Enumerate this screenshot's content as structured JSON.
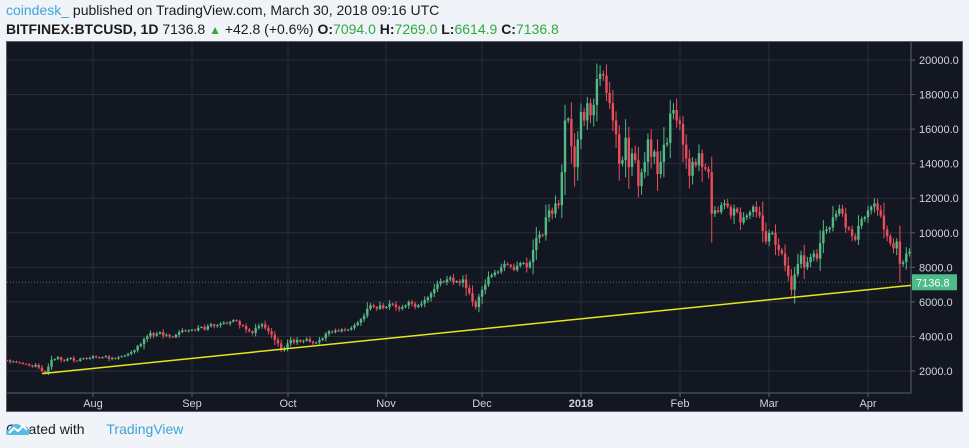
{
  "header": {
    "author": "coindesk_",
    "published_text": " published on TradingView.com, March 30, 2018 09:16 UTC",
    "symbol": "BITFINEX:BTCUSD, 1D",
    "last_price": "7136.8",
    "change_arrow": "▲",
    "change": "+42.8 (+0.6%)",
    "open_label": "O:",
    "open": "7094.0",
    "high_label": "H:",
    "high": "7269.0",
    "low_label": "L:",
    "low": "6614.9",
    "close_label": "C:",
    "close": "7136.8"
  },
  "footer": {
    "created_with": "Created with",
    "brand": "TradingView"
  },
  "colors": {
    "background": "#131722",
    "grid": "#2a2e39",
    "up": "#53b987",
    "down": "#eb4d5c",
    "trendline": "#e8e619",
    "price_tag": "#4dbb87",
    "axis_text": "#d1d4dc"
  },
  "chart_data": {
    "type": "candlestick",
    "title": "BITFINEX:BTCUSD, 1D",
    "xlabel": "",
    "ylabel": "",
    "ylim": [
      1000,
      21000
    ],
    "grid": true,
    "y_ticks": [
      "20000.0",
      "18000.0",
      "16000.0",
      "14000.0",
      "12000.0",
      "10000.0",
      "8000.0",
      "6000.0",
      "4000.0",
      "2000.0"
    ],
    "x_ticks": [
      "Aug",
      "Sep",
      "Oct",
      "Nov",
      "Dec",
      "2018",
      "Feb",
      "Mar",
      "Apr"
    ],
    "x_tick_bold": "2018",
    "current_price_label": "7136.8",
    "start_date": "2017-07-01",
    "end_date": "2018-03-30",
    "trendline": {
      "from": {
        "date": "2017-07-16",
        "price": 1850
      },
      "to": {
        "date": "2018-04-14",
        "price": 6950
      },
      "extends_right": true
    },
    "daily_close_approx": [
      2450,
      2500,
      2560,
      2600,
      2620,
      2520,
      2550,
      2500,
      2470,
      2420,
      2380,
      2330,
      2250,
      2350,
      2200,
      2000,
      1900,
      2250,
      2650,
      2700,
      2800,
      2650,
      2600,
      2700,
      2750,
      2600,
      2580,
      2700,
      2750,
      2700,
      2750,
      2850,
      2800,
      2750,
      2800,
      2850,
      2700,
      2750,
      2720,
      2800,
      2850,
      2900,
      3000,
      3100,
      3200,
      3450,
      3550,
      3850,
      4000,
      4200,
      4050,
      4150,
      4250,
      4050,
      4100,
      4000,
      3950,
      4100,
      4250,
      4350,
      4300,
      4350,
      4400,
      4350,
      4500,
      4550,
      4400,
      4600,
      4700,
      4600,
      4650,
      4750,
      4800,
      4750,
      4850,
      4950,
      4900,
      4650,
      4600,
      4400,
      4300,
      4200,
      4500,
      4600,
      4700,
      4500,
      4300,
      4100,
      3800,
      3600,
      3200,
      3300,
      3600,
      3800,
      3650,
      3800,
      3700,
      3750,
      3850,
      3700,
      3600,
      3650,
      3800,
      3900,
      4150,
      4300,
      4250,
      4350,
      4300,
      4400,
      4350,
      4400,
      4500,
      4650,
      4800,
      5000,
      5200,
      5600,
      5800,
      5700,
      5600,
      5800,
      5650,
      5700,
      5900,
      5850,
      5700,
      5600,
      5700,
      5800,
      6000,
      5900,
      5700,
      5800,
      5900,
      6100,
      6250,
      6500,
      6750,
      7050,
      7200,
      7150,
      7300,
      7400,
      7150,
      7200,
      7100,
      7300,
      6800,
      6500,
      6000,
      5700,
      6300,
      6700,
      7000,
      7450,
      7550,
      7700,
      7750,
      8000,
      8200,
      8150,
      8050,
      7850,
      8100,
      8250,
      8250,
      8000,
      8300,
      9000,
      9700,
      9900,
      9850,
      10900,
      11300,
      11100,
      11700,
      11600,
      13500,
      16500,
      16600,
      15000,
      13800,
      15400,
      17000,
      16500,
      17500,
      16800,
      17400,
      18900,
      19200,
      19100,
      18100,
      17500,
      16500,
      15700,
      14000,
      14200,
      15500,
      13800,
      14600,
      14200,
      12700,
      13500,
      14100,
      15400,
      14400,
      14700,
      13400,
      14100,
      15100,
      15200,
      16900,
      17100,
      16500,
      16300,
      15100,
      14300,
      13300,
      14100,
      13900,
      14600,
      13800,
      13700,
      13500,
      11100,
      11300,
      11200,
      11600,
      11700,
      11500,
      11000,
      11400,
      11200,
      10600,
      10900,
      11000,
      11200,
      11500,
      11200,
      11000,
      10100,
      9500,
      10000,
      10000,
      9300,
      9000,
      8800,
      8100,
      7500,
      6700,
      7600,
      8200,
      8700,
      8000,
      8300,
      8600,
      8800,
      8500,
      9400,
      10100,
      10200,
      10300,
      10900,
      11100,
      11400,
      11100,
      10300,
      10200,
      9800,
      9600,
      10400,
      10800,
      10900,
      11300,
      11500,
      11700,
      11300,
      11000,
      10200,
      9800,
      9400,
      9100,
      9500,
      8200,
      8300,
      8800,
      8900,
      8400,
      7800,
      8200,
      8600,
      8900,
      8900,
      8700,
      8800,
      8500,
      8900,
      8700,
      8200,
      8050,
      7800,
      7000,
      7100,
      6900,
      7136.8
    ]
  }
}
